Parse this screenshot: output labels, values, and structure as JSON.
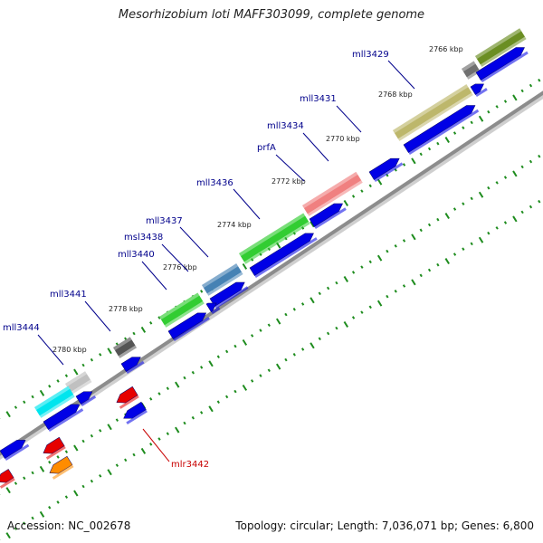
{
  "title": "Mesorhizobium loti MAFF303099, complete genome",
  "accession_text": "Accession: NC_002678",
  "topology_text": "Topology: circular; Length: 7,036,071 bp; Genes: 6,800",
  "colors": {
    "backbone": "#8c8c8c",
    "cds": "#0000e6",
    "tick": "#1e8c1e",
    "label": "#00008b",
    "highlight_label": "#c80000"
  },
  "kbp_ticks": [
    {
      "text": "2766 kbp"
    },
    {
      "text": "2768 kbp"
    },
    {
      "text": "2770 kbp"
    },
    {
      "text": "2772 kbp"
    },
    {
      "text": "2774 kbp"
    },
    {
      "text": "2776 kbp"
    },
    {
      "text": "2778 kbp"
    },
    {
      "text": "2780 kbp"
    }
  ],
  "gene_labels": [
    {
      "text": "mll3429",
      "color": "#00008b"
    },
    {
      "text": "mll3431",
      "color": "#00008b"
    },
    {
      "text": "mll3434",
      "color": "#00008b"
    },
    {
      "text": "prfA",
      "color": "#00008b"
    },
    {
      "text": "mll3436",
      "color": "#00008b"
    },
    {
      "text": "mll3437",
      "color": "#00008b"
    },
    {
      "text": "msl3438",
      "color": "#00008b"
    },
    {
      "text": "mll3440",
      "color": "#00008b"
    },
    {
      "text": "mll3441",
      "color": "#00008b"
    },
    {
      "text": "mll3444",
      "color": "#00008b"
    },
    {
      "text": "mlr3442",
      "color": "#c80000"
    }
  ],
  "feature_colors": [
    {
      "name": "olive",
      "color": "#6b8e23"
    },
    {
      "name": "gray",
      "color": "#707070"
    },
    {
      "name": "khaki",
      "color": "#bdb76b"
    },
    {
      "name": "salmon",
      "color": "#f08080"
    },
    {
      "name": "green",
      "color": "#32cd32"
    },
    {
      "name": "steelblue",
      "color": "#4682b4"
    },
    {
      "name": "green2",
      "color": "#32cd32"
    },
    {
      "name": "darkgray",
      "color": "#555555"
    },
    {
      "name": "lightgray",
      "color": "#c0c0c0"
    },
    {
      "name": "cyan",
      "color": "#00e5ee"
    },
    {
      "name": "red",
      "color": "#e60000"
    },
    {
      "name": "red2",
      "color": "#e60000"
    },
    {
      "name": "orange",
      "color": "#ff8c00"
    },
    {
      "name": "red3",
      "color": "#e60000"
    }
  ]
}
